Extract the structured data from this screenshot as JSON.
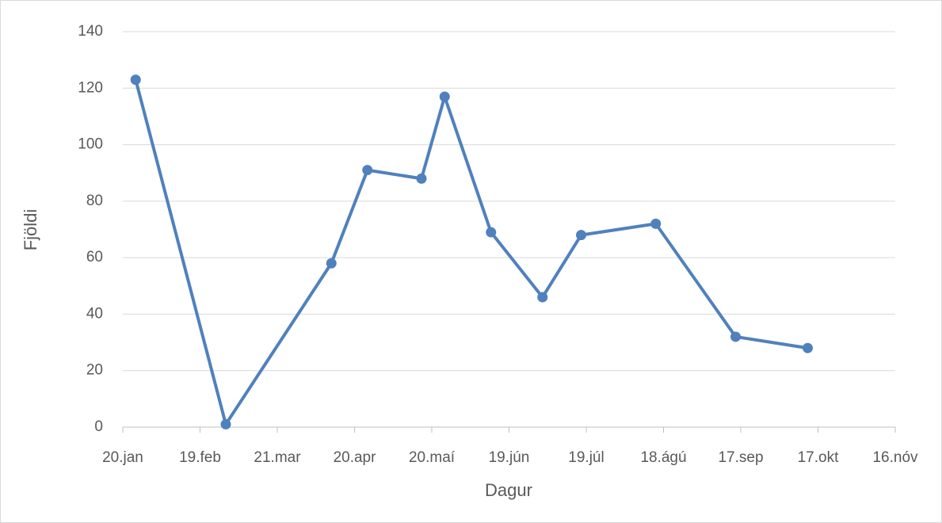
{
  "chart_data": {
    "type": "line",
    "xlabel": "Dagur",
    "ylabel": "Fjöldi",
    "series": [
      {
        "name": "Fjöldi",
        "color": "#4f81bd",
        "x": [
          25,
          60,
          101,
          115,
          136,
          145,
          163,
          183,
          198,
          227,
          258,
          286
        ],
        "values": [
          123,
          1,
          58,
          91,
          88,
          117,
          69,
          46,
          68,
          72,
          32,
          28
        ]
      }
    ],
    "xlim": [
      20,
      320
    ],
    "xticks": [
      {
        "value": 20,
        "label": "20.jan"
      },
      {
        "value": 50,
        "label": "19.feb"
      },
      {
        "value": 80,
        "label": "21.mar"
      },
      {
        "value": 110,
        "label": "20.apr"
      },
      {
        "value": 140,
        "label": "20.maí"
      },
      {
        "value": 170,
        "label": "19.jún"
      },
      {
        "value": 200,
        "label": "19.júl"
      },
      {
        "value": 230,
        "label": "18.ágú"
      },
      {
        "value": 260,
        "label": "17.sep"
      },
      {
        "value": 290,
        "label": "17.okt"
      },
      {
        "value": 320,
        "label": "16.nóv"
      }
    ],
    "ylim": [
      0,
      140
    ],
    "yticks": [
      0,
      20,
      40,
      60,
      80,
      100,
      120,
      140
    ],
    "grid": true
  }
}
